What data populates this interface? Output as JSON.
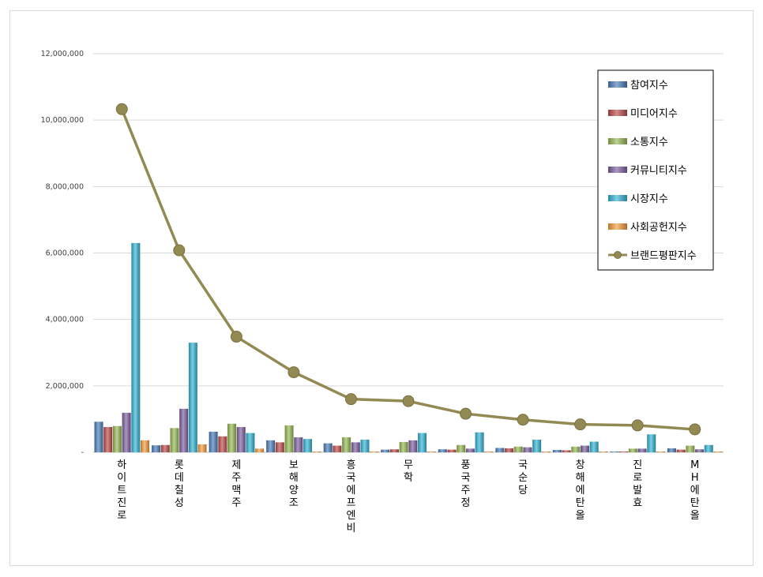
{
  "chart_data": {
    "type": "bar",
    "categories": [
      "하이트진로",
      "롯데칠성",
      "제주맥주",
      "보해양조",
      "흥국에프엔비",
      "무학",
      "풍국주정",
      "국순당",
      "창해에탄올",
      "진로발효",
      "MH에탄올"
    ],
    "series": [
      {
        "name": "참여지수",
        "color": "#4a7ebb",
        "values": [
          920000,
          210000,
          620000,
          360000,
          270000,
          80000,
          90000,
          130000,
          70000,
          20000,
          120000
        ]
      },
      {
        "name": "미디어지수",
        "color": "#be4b48",
        "values": [
          760000,
          220000,
          480000,
          300000,
          200000,
          90000,
          80000,
          120000,
          60000,
          20000,
          80000
        ]
      },
      {
        "name": "소통지수",
        "color": "#98b954",
        "values": [
          790000,
          730000,
          860000,
          810000,
          450000,
          310000,
          220000,
          170000,
          170000,
          110000,
          200000
        ]
      },
      {
        "name": "커뮤니티지수",
        "color": "#7d60a0",
        "values": [
          1190000,
          1310000,
          760000,
          450000,
          300000,
          360000,
          110000,
          150000,
          200000,
          110000,
          90000
        ]
      },
      {
        "name": "시장지수",
        "color": "#33b5d6",
        "values": [
          6300000,
          3300000,
          580000,
          400000,
          380000,
          580000,
          600000,
          380000,
          320000,
          540000,
          220000
        ]
      },
      {
        "name": "사회공헌지수",
        "color": "#f59d3d",
        "values": [
          360000,
          240000,
          110000,
          20000,
          10000,
          20000,
          10000,
          10000,
          10000,
          10000,
          10000
        ]
      }
    ],
    "line": {
      "name": "브랜드평판지수",
      "color": "#938953",
      "values": [
        10330000,
        6080000,
        3480000,
        2410000,
        1600000,
        1540000,
        1160000,
        980000,
        840000,
        810000,
        690000
      ]
    },
    "y_ticks": [
      "-",
      "2,000,000",
      "4,000,000",
      "6,000,000",
      "8,000,000",
      "10,000,000",
      "12,000,000"
    ],
    "ylim": [
      0,
      12000000
    ],
    "grid": true,
    "legend_position": "top-right"
  }
}
